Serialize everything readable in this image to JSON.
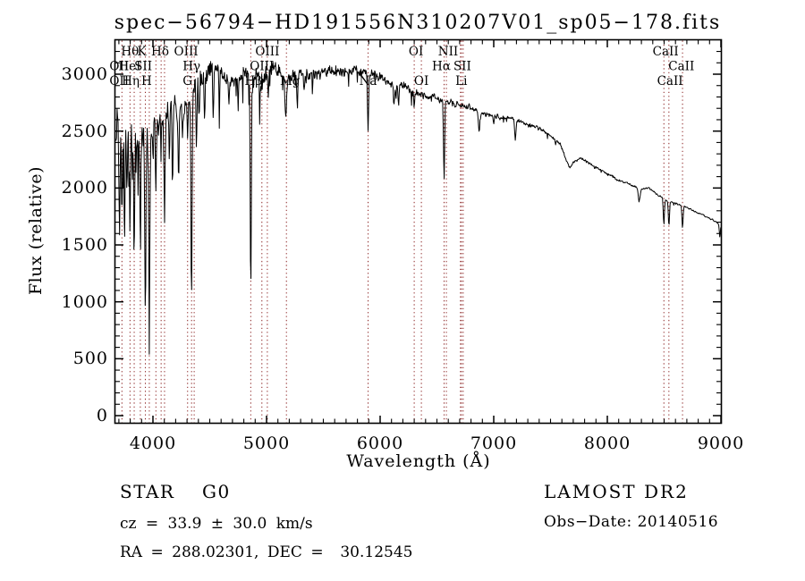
{
  "title": "spec−56794−HD191556N310207V01_sp05−178.fits",
  "axes": {
    "xlabel": "Wavelength (Å)",
    "ylabel": "Flux (relative)",
    "xticks": [
      4000,
      5000,
      6000,
      7000,
      8000,
      9000
    ],
    "yticks": [
      0,
      500,
      1000,
      1500,
      2000,
      2500,
      3000
    ],
    "x_minor_step": 100,
    "y_minor_step": 100,
    "xlim": [
      3675,
      9000
    ],
    "ylim": [
      0,
      3300
    ]
  },
  "annotations": {
    "class_label": "STAR",
    "subclass": "G0",
    "cz": "cz = 33.9 ± 30.0 km/s",
    "radec": "RA = 288.02301, DEC =  30.12545",
    "survey": "LAMOST DR2",
    "obs_date": "Obs−Date: 20140516"
  },
  "chart_data": {
    "type": "line",
    "series_name": "spectrum",
    "x_unit": "Angstrom",
    "line_color": "#000000",
    "marker_line_color": "#8b2222",
    "noise_seed": 77,
    "continuum": [
      [
        3675,
        2550
      ],
      [
        3740,
        2560
      ],
      [
        3800,
        2520
      ],
      [
        3860,
        2470
      ],
      [
        3920,
        2420
      ],
      [
        3980,
        2470
      ],
      [
        4040,
        2560
      ],
      [
        4100,
        2620
      ],
      [
        4160,
        2700
      ],
      [
        4230,
        2710
      ],
      [
        4290,
        2730
      ],
      [
        4330,
        2780
      ],
      [
        4380,
        2920
      ],
      [
        4430,
        2980
      ],
      [
        4480,
        3030
      ],
      [
        4530,
        3060
      ],
      [
        4580,
        3010
      ],
      [
        4640,
        2980
      ],
      [
        4700,
        2950
      ],
      [
        4760,
        2960
      ],
      [
        4820,
        2980
      ],
      [
        4880,
        2960
      ],
      [
        4940,
        3000
      ],
      [
        5000,
        3010
      ],
      [
        5060,
        3030
      ],
      [
        5120,
        3010
      ],
      [
        5180,
        2950
      ],
      [
        5240,
        2990
      ],
      [
        5320,
        3010
      ],
      [
        5400,
        3000
      ],
      [
        5480,
        3020
      ],
      [
        5560,
        3040
      ],
      [
        5640,
        3030
      ],
      [
        5720,
        3010
      ],
      [
        5800,
        3030
      ],
      [
        5870,
        3020
      ],
      [
        5940,
        2990
      ],
      [
        6010,
        2960
      ],
      [
        6090,
        2920
      ],
      [
        6170,
        2890
      ],
      [
        6250,
        2870
      ],
      [
        6330,
        2830
      ],
      [
        6410,
        2810
      ],
      [
        6490,
        2790
      ],
      [
        6570,
        2770
      ],
      [
        6650,
        2740
      ],
      [
        6730,
        2730
      ],
      [
        6810,
        2700
      ],
      [
        6890,
        2650
      ],
      [
        6970,
        2640
      ],
      [
        7050,
        2620
      ],
      [
        7130,
        2610
      ],
      [
        7210,
        2600
      ],
      [
        7290,
        2560
      ],
      [
        7370,
        2540
      ],
      [
        7450,
        2500
      ],
      [
        7530,
        2430
      ],
      [
        7590,
        2380
      ],
      [
        7630,
        2260
      ],
      [
        7670,
        2180
      ],
      [
        7710,
        2230
      ],
      [
        7760,
        2260
      ],
      [
        7820,
        2230
      ],
      [
        7880,
        2190
      ],
      [
        7940,
        2160
      ],
      [
        8010,
        2120
      ],
      [
        8090,
        2070
      ],
      [
        8170,
        2050
      ],
      [
        8250,
        2010
      ],
      [
        8310,
        1990
      ],
      [
        8370,
        2000
      ],
      [
        8430,
        1950
      ],
      [
        8490,
        1910
      ],
      [
        8550,
        1880
      ],
      [
        8610,
        1860
      ],
      [
        8670,
        1840
      ],
      [
        8730,
        1815
      ],
      [
        8790,
        1785
      ],
      [
        8850,
        1760
      ],
      [
        8910,
        1730
      ],
      [
        8960,
        1700
      ],
      [
        9005,
        1660
      ]
    ],
    "noise_amplitude": [
      [
        3675,
        240
      ],
      [
        3800,
        230
      ],
      [
        3900,
        230
      ],
      [
        4000,
        190
      ],
      [
        4150,
        150
      ],
      [
        4300,
        120
      ],
      [
        4450,
        105
      ],
      [
        4700,
        95
      ],
      [
        5000,
        90
      ],
      [
        5300,
        75
      ],
      [
        5600,
        65
      ],
      [
        5900,
        58
      ],
      [
        6200,
        48
      ],
      [
        6500,
        40
      ],
      [
        6800,
        32
      ],
      [
        7100,
        26
      ],
      [
        7400,
        22
      ],
      [
        7700,
        16
      ],
      [
        8000,
        13
      ],
      [
        8300,
        11
      ],
      [
        8600,
        9
      ],
      [
        9005,
        8
      ]
    ],
    "absorption_lines": [
      [
        3705,
        1700,
        4
      ],
      [
        3727,
        1780,
        4
      ],
      [
        3750,
        1500,
        4
      ],
      [
        3771,
        1950,
        4
      ],
      [
        3798,
        1600,
        4
      ],
      [
        3820,
        2250,
        3
      ],
      [
        3835,
        1500,
        4
      ],
      [
        3860,
        2300,
        3
      ],
      [
        3889,
        1400,
        4
      ],
      [
        3912,
        2350,
        3
      ],
      [
        3933,
        950,
        5
      ],
      [
        3968,
        900,
        5
      ],
      [
        4000,
        2250,
        3
      ],
      [
        4026,
        2050,
        4
      ],
      [
        4072,
        2280,
        4
      ],
      [
        4102,
        1720,
        5
      ],
      [
        4144,
        2350,
        4
      ],
      [
        4172,
        1850,
        4
      ],
      [
        4226,
        2150,
        4
      ],
      [
        4260,
        2500,
        4
      ],
      [
        4305,
        2400,
        5
      ],
      [
        4340,
        1080,
        5
      ],
      [
        4383,
        2280,
        4
      ],
      [
        4405,
        2550,
        4
      ],
      [
        4455,
        2650,
        4
      ],
      [
        4530,
        2620,
        4
      ],
      [
        4585,
        2700,
        4
      ],
      [
        4668,
        2680,
        4
      ],
      [
        4750,
        2750,
        4
      ],
      [
        4861,
        1060,
        5
      ],
      [
        4940,
        2750,
        4
      ],
      [
        5015,
        2800,
        4
      ],
      [
        5170,
        2640,
        7
      ],
      [
        5270,
        2700,
        5
      ],
      [
        5330,
        2800,
        4
      ],
      [
        5405,
        2850,
        4
      ],
      [
        5894,
        2480,
        5
      ],
      [
        6122,
        2720,
        4
      ],
      [
        6162,
        2730,
        4
      ],
      [
        6300,
        2700,
        3
      ],
      [
        6563,
        2070,
        5
      ],
      [
        6870,
        2500,
        7
      ],
      [
        7000,
        2560,
        4
      ],
      [
        7190,
        2420,
        6
      ],
      [
        8280,
        1880,
        8
      ],
      [
        8498,
        1680,
        5
      ],
      [
        8542,
        1670,
        5
      ],
      [
        8662,
        1650,
        5
      ],
      [
        8990,
        1570,
        4
      ]
    ],
    "spectral_line_markers": [
      {
        "label": "Hθ",
        "row": 1,
        "wavelength": 3798,
        "dx": 0
      },
      {
        "label": "K",
        "row": 1,
        "wavelength": 3933,
        "dx": -4
      },
      {
        "label": "Hδ",
        "row": 1,
        "wavelength": 4102,
        "dx": -5
      },
      {
        "label": "OIII",
        "row": 1,
        "wavelength": 4363,
        "dx": -9
      },
      {
        "label": "OIII",
        "row": 1,
        "wavelength": 5007,
        "dx": 0
      },
      {
        "label": "OI",
        "row": 1,
        "wavelength": 6300,
        "dx": 2
      },
      {
        "label": "NII",
        "row": 1,
        "wavelength": 6583,
        "dx": 2
      },
      {
        "label": "CaII",
        "row": 1,
        "wavelength": 8498,
        "dx": 2
      },
      {
        "label": "OII",
        "row": 2,
        "wavelength": 3727,
        "dx": -3
      },
      {
        "label": "HeI",
        "row": 2,
        "wavelength": 3889,
        "dx": -12
      },
      {
        "label": "SII",
        "row": 2,
        "wavelength": 4072,
        "dx": -20
      },
      {
        "label": "Hγ",
        "row": 2,
        "wavelength": 4340,
        "dx": 0
      },
      {
        "label": "OIII",
        "row": 2,
        "wavelength": 4959,
        "dx": 0
      },
      {
        "label": "Hα",
        "row": 2,
        "wavelength": 6563,
        "dx": -3
      },
      {
        "label": "SII",
        "row": 2,
        "wavelength": 6724,
        "dx": 0
      },
      {
        "label": "CaII",
        "row": 2,
        "wavelength": 8542,
        "dx": 14
      },
      {
        "label": "OII",
        "row": 3,
        "wavelength": 3727,
        "dx": -3
      },
      {
        "label": "Hη",
        "row": 3,
        "wavelength": 3835,
        "dx": -4
      },
      {
        "label": "H",
        "row": 3,
        "wavelength": 3968,
        "dx": -3
      },
      {
        "label": "G",
        "row": 3,
        "wavelength": 4305,
        "dx": 0
      },
      {
        "label": "Hβ",
        "row": 3,
        "wavelength": 4861,
        "dx": 3
      },
      {
        "label": "Mg",
        "row": 3,
        "wavelength": 5175,
        "dx": 4
      },
      {
        "label": "Na",
        "row": 3,
        "wavelength": 5894,
        "dx": 0
      },
      {
        "label": "OI",
        "row": 3,
        "wavelength": 6363,
        "dx": 0
      },
      {
        "label": "Li",
        "row": 3,
        "wavelength": 6707,
        "dx": 1
      },
      {
        "label": "CaII",
        "row": 3,
        "wavelength": 8662,
        "dx": -14
      }
    ],
    "marker_wavelengths": [
      3727,
      3798,
      3835,
      3889,
      3933,
      3968,
      4026,
      4072,
      4102,
      4305,
      4340,
      4363,
      4861,
      4959,
      5007,
      5175,
      5894,
      6300,
      6363,
      6563,
      6583,
      6707,
      6716,
      6731,
      8498,
      8542,
      8662
    ]
  }
}
